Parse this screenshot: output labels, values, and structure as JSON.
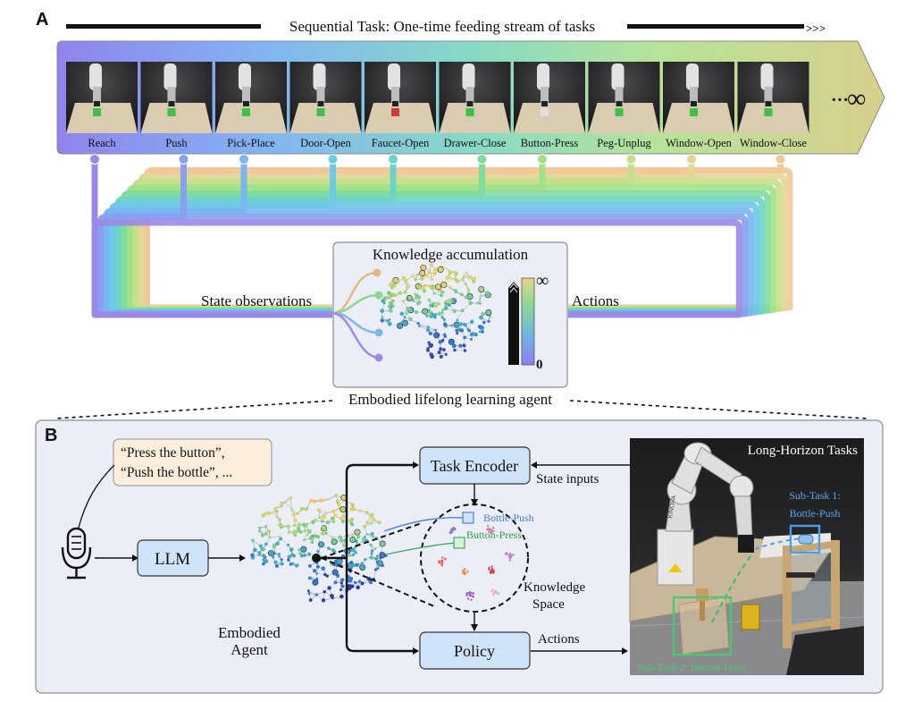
{
  "panel_a": {
    "letter": "A",
    "stream_title": "Sequential Task: One-time feeding stream of tasks",
    "stream_end": ">>>",
    "ellipsis": "···",
    "infinity": "∞",
    "tasks": [
      "Reach",
      "Push",
      "Pick-Place",
      "Door-Open",
      "Faucet-Open",
      "Drawer-Close",
      "Button-Press",
      "Peg-Unplug",
      "Window-Open",
      "Window-Close"
    ],
    "task_colors": [
      "#9c88e6",
      "#8a9ff0",
      "#79b6f2",
      "#6ec8e8",
      "#6fd3c8",
      "#7fdc9c",
      "#a2e08a",
      "#c4e08a",
      "#e2d796",
      "#f2c89a"
    ],
    "knowledge_title": "Knowledge accumulation",
    "colorbar_top": "∞",
    "colorbar_bottom": "0",
    "state_label": "State observations",
    "actions_label": "Actions",
    "agent_label": "Embodied lifelong learning agent"
  },
  "panel_b": {
    "letter": "B",
    "speech_line1": "“Press the button”,",
    "speech_line2": "“Push the bottle”, ...",
    "llm_label": "LLM",
    "agent_line1": "Embodied",
    "agent_line2": "Agent",
    "task_encoder_label": "Task Encoder",
    "policy_label": "Policy",
    "state_inputs_label": "State inputs",
    "actions_label": "Actions",
    "knowledge_space_line1": "Knowledge",
    "knowledge_space_line2": "Space",
    "bottle_push_label": "Bottle-Push",
    "button_press_label": "Button-Press",
    "photo_title": "Long-Horizon Tasks",
    "subtask1_line1": "Sub-Task 1:",
    "subtask1_line2": "Bottle-Push",
    "subtask2_label": "Sub-Task 2: Button-Press",
    "robot_brand": "KINOVA"
  }
}
